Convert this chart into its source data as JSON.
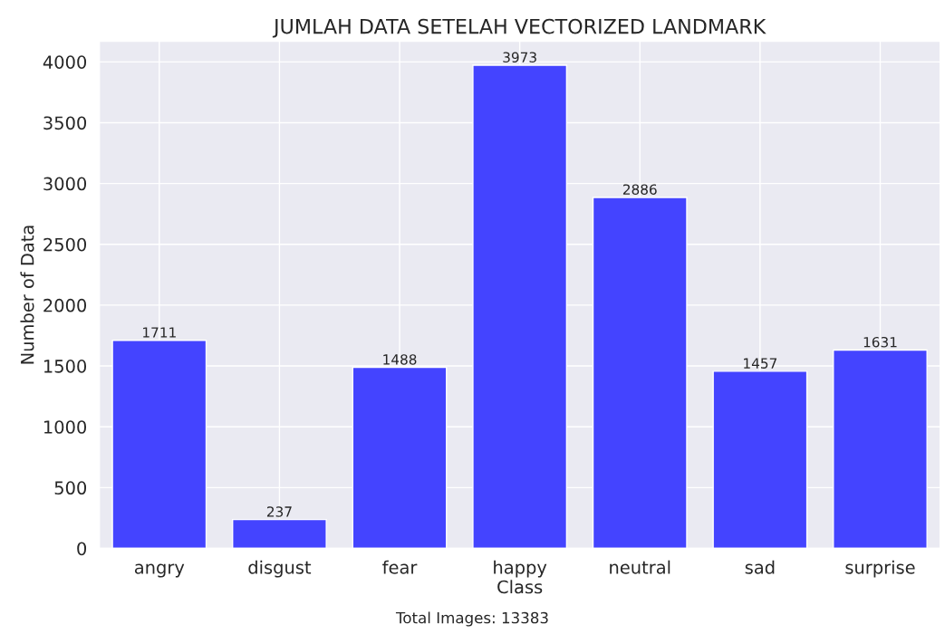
{
  "chart_data": {
    "type": "bar",
    "title": "JUMLAH DATA SETELAH VECTORIZED LANDMARK",
    "xlabel": "Class",
    "ylabel": "Number of Data",
    "categories": [
      "angry",
      "disgust",
      "fear",
      "happy",
      "neutral",
      "sad",
      "surprise"
    ],
    "values": [
      1711,
      237,
      1488,
      3973,
      2886,
      1457,
      1631
    ],
    "color": "#4444ff",
    "ylim": [
      0,
      4170
    ],
    "yticks": [
      0,
      500,
      1000,
      1500,
      2000,
      2500,
      3000,
      3500,
      4000
    ],
    "grid": true,
    "data_labels": true,
    "annotations": [
      "Total Images: 13383"
    ]
  }
}
